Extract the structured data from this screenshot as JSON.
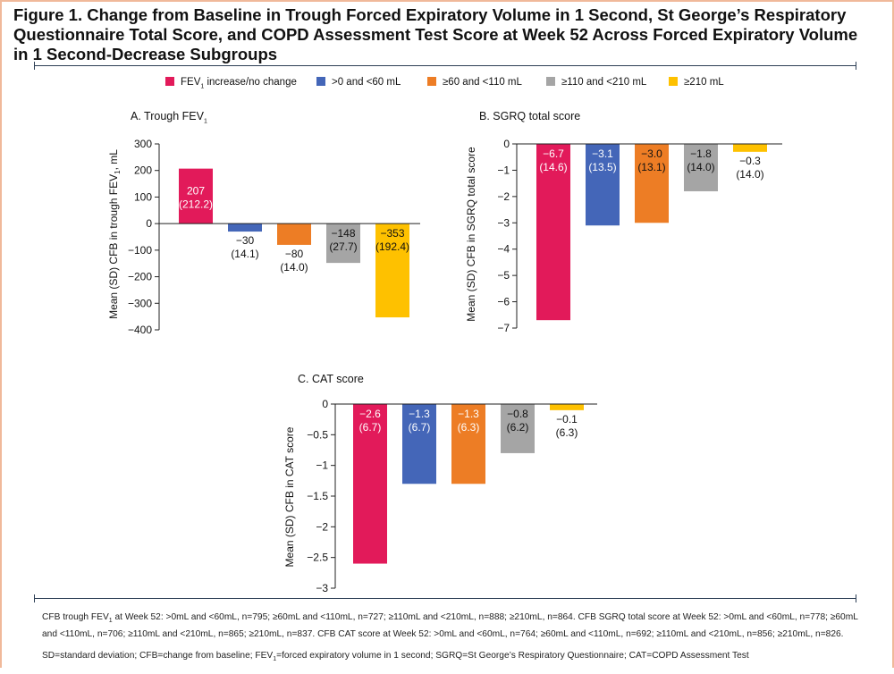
{
  "title": "Figure 1. Change from Baseline in Trough Forced Expiratory Volume in 1 Second, St George’s Respiratory Questionnaire Total Score, and COPD Assessment Test Score at Week 52 Across Forced Expiratory Volume in 1 Second-Decrease Subgroups",
  "legend": [
    {
      "label_main": "FEV",
      "label_sub": "1",
      "label_rest": " increase/no change",
      "color": "#e21a5a"
    },
    {
      "label_main": ">0 and <60 mL",
      "label_sub": "",
      "label_rest": "",
      "color": "#4466b8"
    },
    {
      "label_main": "≥60 and <110 mL",
      "label_sub": "",
      "label_rest": "",
      "color": "#ed7d25"
    },
    {
      "label_main": "≥110 and <210 mL",
      "label_sub": "",
      "label_rest": "",
      "color": "#a5a5a5"
    },
    {
      "label_main": "≥210 mL",
      "label_sub": "",
      "label_rest": "",
      "color": "#fec100"
    }
  ],
  "panels": {
    "a": {
      "title_main": "A. Trough FEV",
      "title_sub": "1",
      "ylabel_main": "Mean (SD) CFB in trough FEV",
      "ylabel_sub": "1",
      "ylabel_rest": ", mL"
    },
    "b": {
      "title_main": "B. SGRQ total score",
      "ylabel_main": "Mean (SD) CFB in SGRQ total score"
    },
    "c": {
      "title_main": "C. CAT score",
      "ylabel_main": "Mean (SD) CFB in CAT score"
    }
  },
  "chart_data": [
    {
      "type": "bar",
      "title": "A. Trough FEV1",
      "ylabel": "Mean (SD) CFB in trough FEV1, mL",
      "ylim": [
        -400,
        300
      ],
      "yticks": [
        300,
        200,
        100,
        0,
        -100,
        -200,
        -300,
        -400
      ],
      "ytick_labels": [
        "300",
        "200",
        "100",
        "0",
        "−100",
        "−200",
        "−300",
        "−400"
      ],
      "categories": [
        "FEV1 increase/no change",
        ">0 and <60 mL",
        "≥60 and <110 mL",
        "≥110 and <210 mL",
        "≥210 mL"
      ],
      "values": [
        207,
        -30,
        -80,
        -148,
        -353
      ],
      "value_labels": [
        "207",
        "−30",
        "−80",
        "−148",
        "−353"
      ],
      "sd_labels": [
        "(212.2)",
        "(14.1)",
        "(14.0)",
        "(27.7)",
        "(192.4)"
      ],
      "label_placement": [
        "inside",
        "below",
        "below",
        "inside",
        "inside"
      ],
      "label_color": [
        "#ffffff",
        "#111111",
        "#111111",
        "#111111",
        "#111111"
      ]
    },
    {
      "type": "bar",
      "title": "B. SGRQ total score",
      "ylabel": "Mean (SD) CFB in SGRQ total score",
      "ylim": [
        -7,
        0
      ],
      "yticks": [
        0,
        -1,
        -2,
        -3,
        -4,
        -5,
        -6,
        -7
      ],
      "ytick_labels": [
        "0",
        "−1",
        "−2",
        "−3",
        "−4",
        "−5",
        "−6",
        "−7"
      ],
      "categories": [
        "FEV1 increase/no change",
        ">0 and <60 mL",
        "≥60 and <110 mL",
        "≥110 and <210 mL",
        "≥210 mL"
      ],
      "values": [
        -6.7,
        -3.1,
        -3.0,
        -1.8,
        -0.3
      ],
      "value_labels": [
        "−6.7",
        "−3.1",
        "−3.0",
        "−1.8",
        "−0.3"
      ],
      "sd_labels": [
        "(14.6)",
        "(13.5)",
        "(13.1)",
        "(14.0)",
        "(14.0)"
      ],
      "label_placement": [
        "inside",
        "inside",
        "inside",
        "inside",
        "below"
      ],
      "label_color": [
        "#ffffff",
        "#ffffff",
        "#111111",
        "#111111",
        "#111111"
      ]
    },
    {
      "type": "bar",
      "title": "C. CAT score",
      "ylabel": "Mean (SD) CFB in CAT score",
      "ylim": [
        -3,
        0
      ],
      "yticks": [
        0,
        -0.5,
        -1,
        -1.5,
        -2,
        -2.5,
        -3
      ],
      "ytick_labels": [
        "0",
        "−0.5",
        "−1",
        "−1.5",
        "−2",
        "−2.5",
        "−3"
      ],
      "categories": [
        "FEV1 increase/no change",
        ">0 and <60 mL",
        "≥60 and <110 mL",
        "≥110 and <210 mL",
        "≥210 mL"
      ],
      "values": [
        -2.6,
        -1.3,
        -1.3,
        -0.8,
        -0.1
      ],
      "value_labels": [
        "−2.6",
        "−1.3",
        "−1.3",
        "−0.8",
        "−0.1"
      ],
      "sd_labels": [
        "(6.7)",
        "(6.7)",
        "(6.3)",
        "(6.2)",
        "(6.3)"
      ],
      "label_placement": [
        "inside",
        "inside",
        "inside",
        "inside",
        "below"
      ],
      "label_color": [
        "#ffffff",
        "#ffffff",
        "#ffffff",
        "#111111",
        "#111111"
      ]
    }
  ],
  "footnotes": {
    "cfb_1": "CFB trough FEV",
    "cfb_sub": "1",
    "cfb_2": " at Week 52: >0mL and <60mL, n=795; ≥60mL and <110mL, n=727; ≥110mL and <210mL, n=888; ≥210mL, n=864. CFB SGRQ total score at Week 52: >0mL and <60mL, n=778; ≥60mL and <110mL, n=706; ≥110mL and <210mL, n=865; ≥210mL, n=837. CFB CAT score at Week 52: >0mL and <60mL, n=764; ≥60mL and <110mL, n=692; ≥110mL and <210mL, n=856; ≥210mL, n=826.",
    "abbr_1": "SD=standard deviation; CFB=change from baseline; FEV",
    "abbr_sub": "1",
    "abbr_2": "=forced expiratory volume in 1 second; SGRQ=St George’s Respiratory Questionnaire; CAT=COPD Assessment Test"
  }
}
